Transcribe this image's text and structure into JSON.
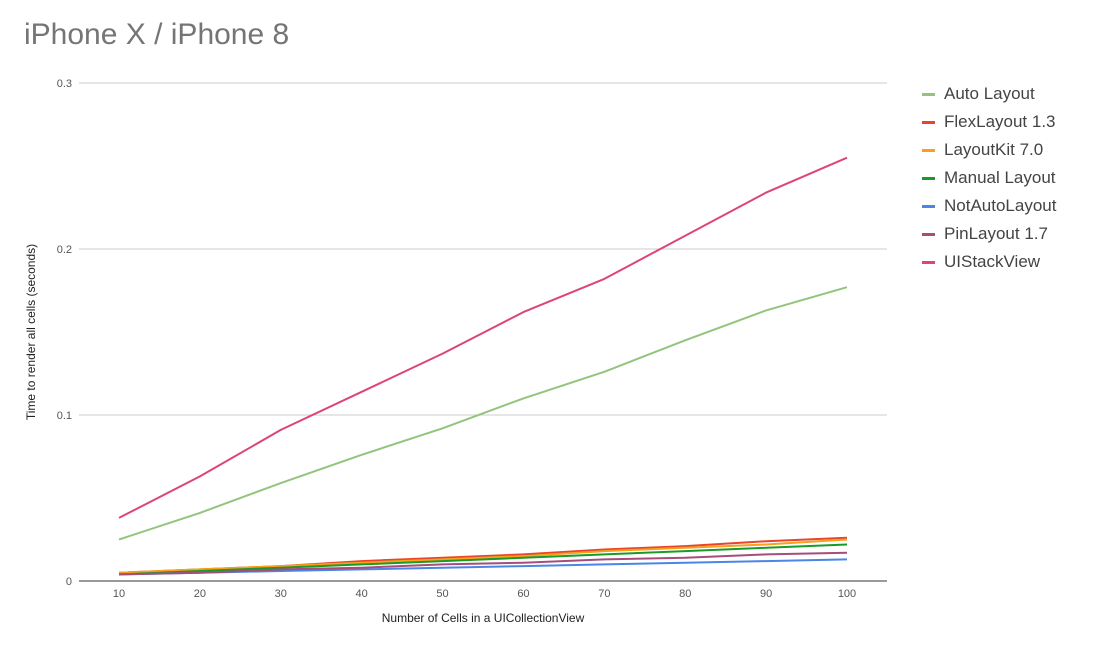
{
  "chart_data": {
    "type": "line",
    "title": "iPhone X / iPhone 8",
    "xlabel": "Number of Cells in a UICollectionView",
    "ylabel": "Time to  render  all cells (seconds)",
    "x": [
      10,
      20,
      30,
      40,
      50,
      60,
      70,
      80,
      90,
      100
    ],
    "ylim": [
      0,
      0.3
    ],
    "yticks": [
      0,
      0.1,
      0.2,
      0.3
    ],
    "ytick_labels": [
      "0",
      "0.1",
      "0.2",
      "0.3"
    ],
    "xtick_labels": [
      "10",
      "20",
      "30",
      "40",
      "50",
      "60",
      "70",
      "80",
      "90",
      "100"
    ],
    "grid": true,
    "legend_position": "right",
    "series": [
      {
        "name": "Auto Layout",
        "color": "#93c47d",
        "values": [
          0.025,
          0.041,
          0.059,
          0.076,
          0.092,
          0.11,
          0.126,
          0.145,
          0.163,
          0.177
        ]
      },
      {
        "name": "FlexLayout 1.3",
        "color": "#e8452c",
        "values": [
          0.005,
          0.007,
          0.009,
          0.012,
          0.014,
          0.016,
          0.019,
          0.021,
          0.024,
          0.026
        ]
      },
      {
        "name": "LayoutKit 7.0",
        "color": "#f6a11c",
        "values": [
          0.005,
          0.007,
          0.009,
          0.011,
          0.013,
          0.015,
          0.018,
          0.02,
          0.022,
          0.025
        ]
      },
      {
        "name": "Manual Layout",
        "color": "#1a9a2a",
        "values": [
          0.004,
          0.006,
          0.008,
          0.01,
          0.012,
          0.014,
          0.016,
          0.018,
          0.02,
          0.022
        ]
      },
      {
        "name": "NotAutoLayout",
        "color": "#4a86e8",
        "values": [
          0.004,
          0.005,
          0.006,
          0.007,
          0.008,
          0.009,
          0.01,
          0.011,
          0.012,
          0.013
        ]
      },
      {
        "name": "PinLayout 1.7",
        "color": "#a64d79",
        "values": [
          0.004,
          0.005,
          0.007,
          0.008,
          0.01,
          0.011,
          0.013,
          0.014,
          0.016,
          0.017
        ]
      },
      {
        "name": "UIStackView",
        "color": "#dd4477",
        "values": [
          0.038,
          0.063,
          0.091,
          0.114,
          0.137,
          0.162,
          0.182,
          0.208,
          0.234,
          0.255
        ]
      }
    ]
  }
}
